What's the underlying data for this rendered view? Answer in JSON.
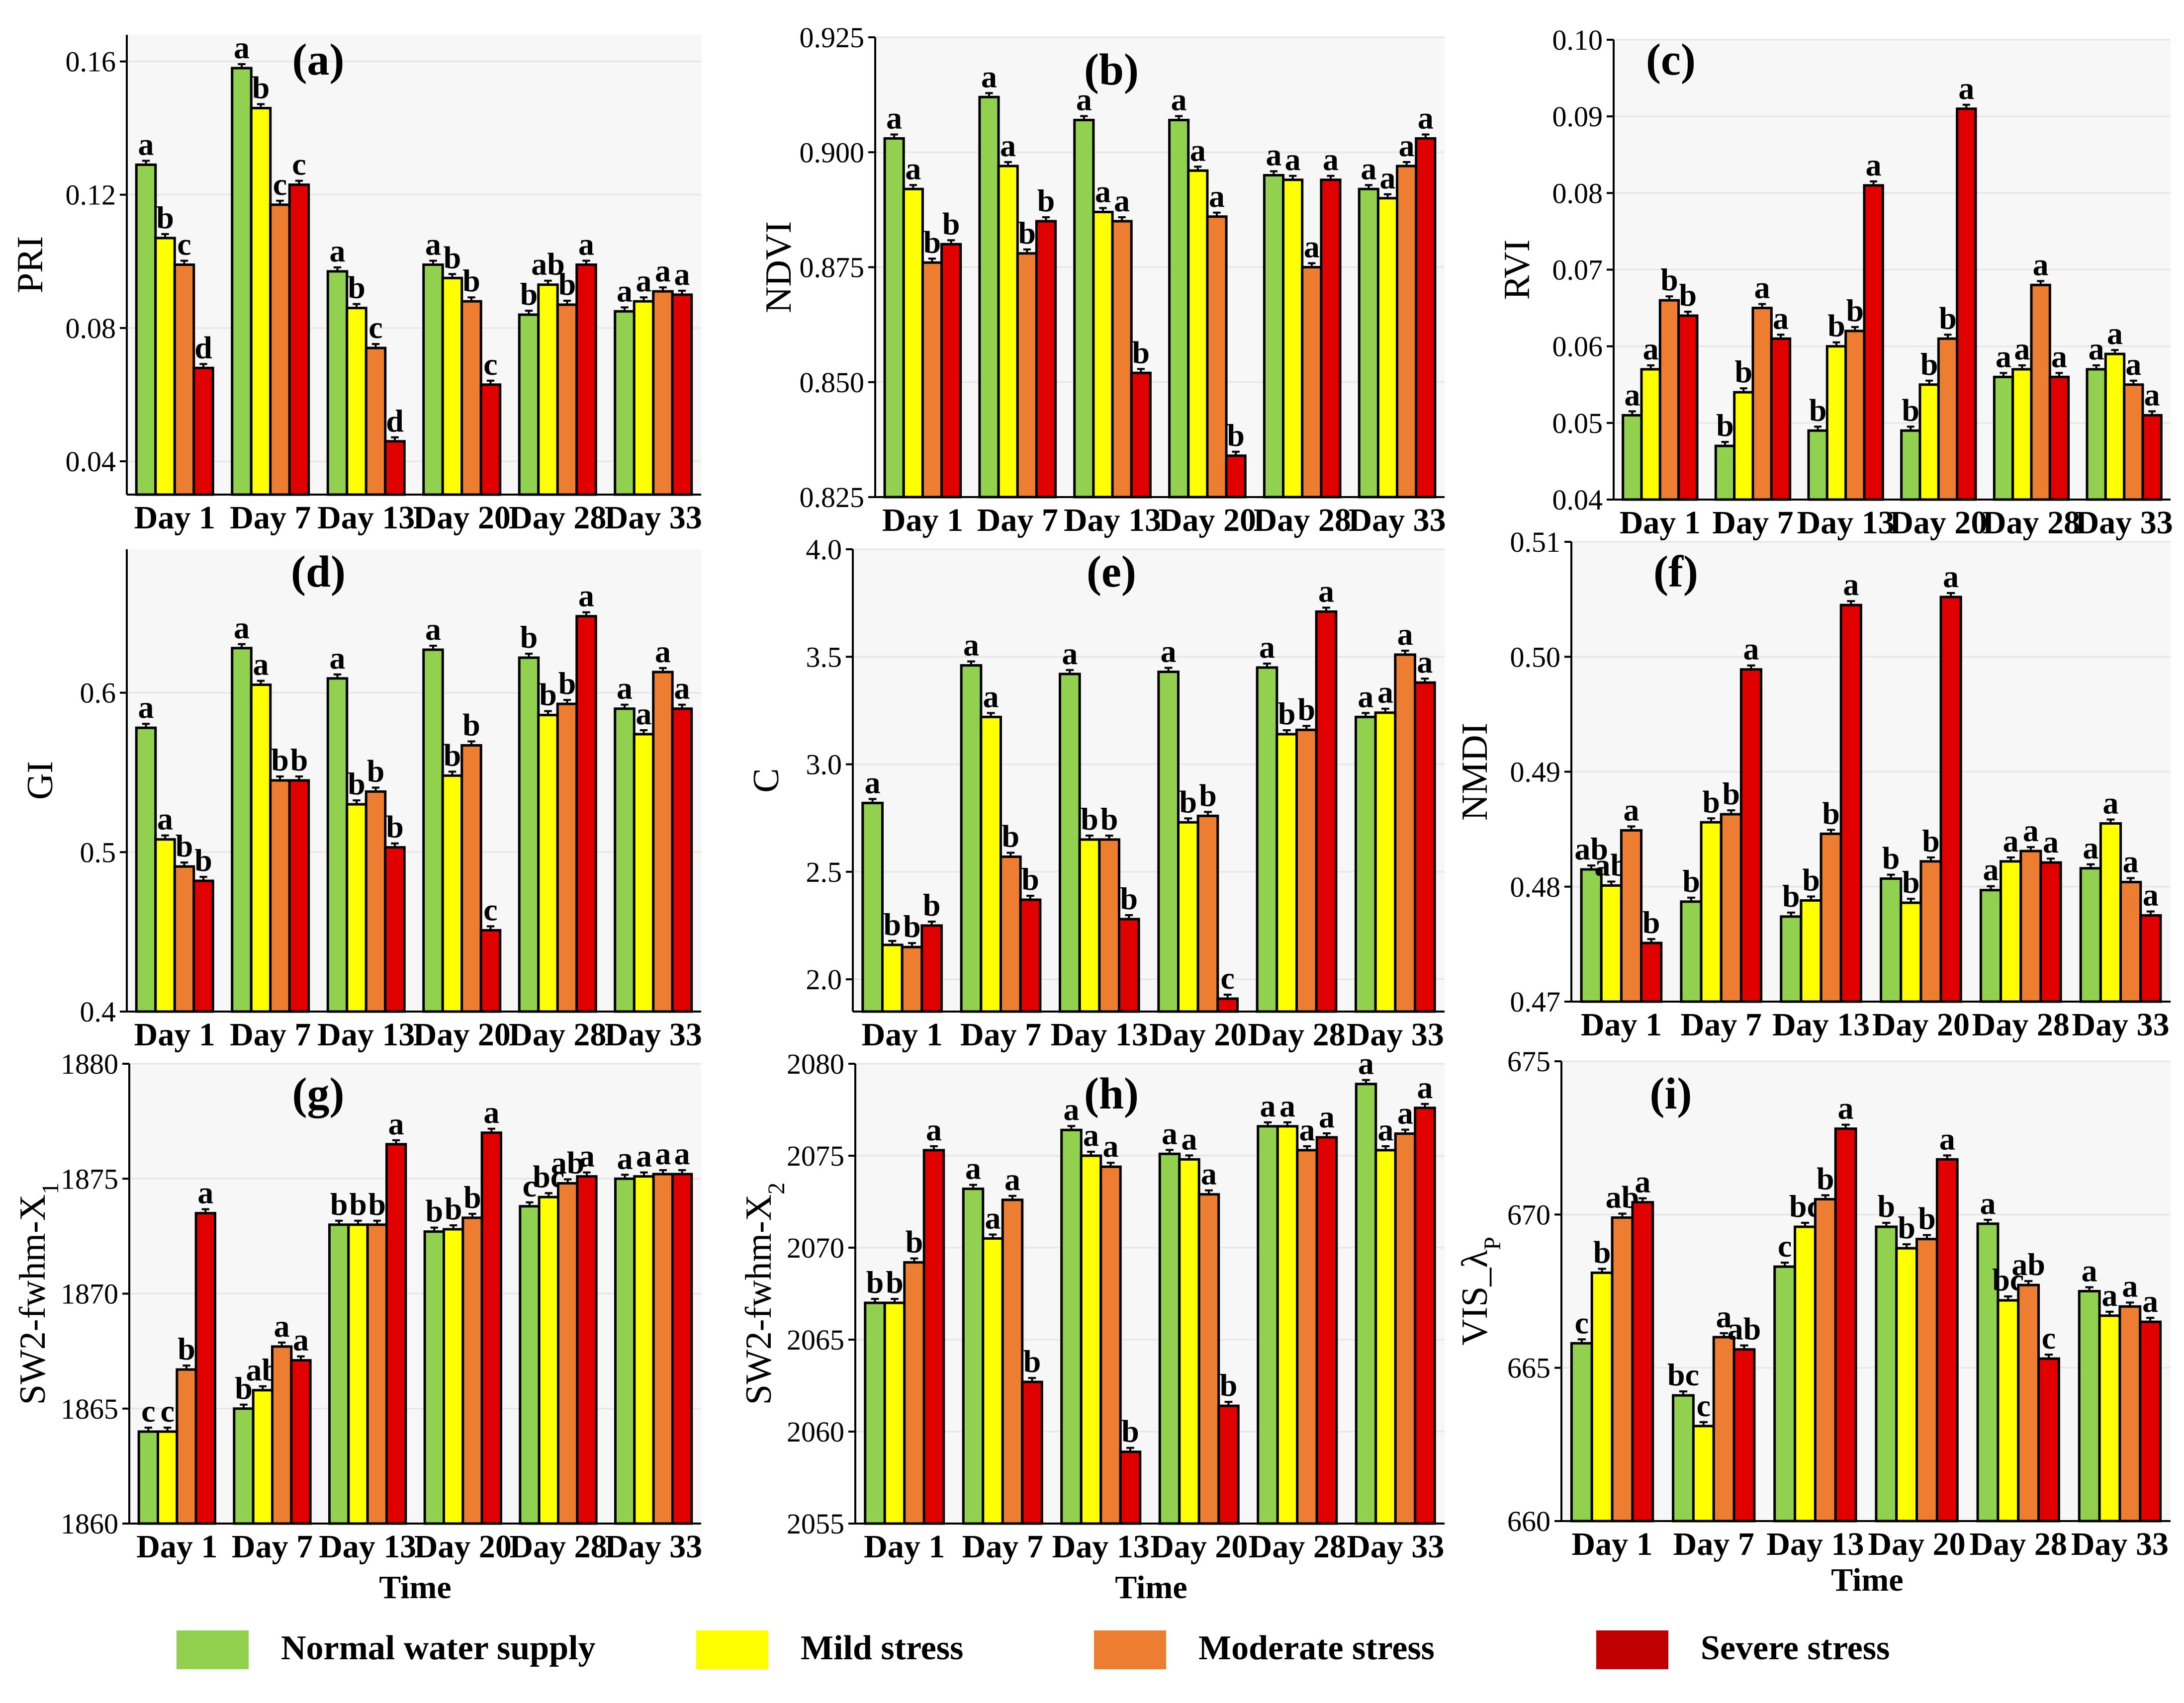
{
  "colors": {
    "normal": "#92d050",
    "mild": "#ffff00",
    "moderate": "#ed7d31",
    "severe": "#e00000",
    "severe_legend": "#c00000",
    "grid": "#e6e6e6",
    "panel_bg": "#f7f7f7"
  },
  "time_label": "Time",
  "legend": [
    {
      "key": "normal",
      "label": "Normal water supply"
    },
    {
      "key": "mild",
      "label": "Mild stress"
    },
    {
      "key": "moderate",
      "label": "Moderate stress"
    },
    {
      "key": "severe",
      "label": "Severe stress"
    }
  ],
  "chart_data": [
    {
      "type": "bar",
      "panel": "(a)",
      "ylabel": "PRI",
      "categories": [
        "Day 1",
        "Day 7",
        "Day 13",
        "Day 20",
        "Day 28",
        "Day 33"
      ],
      "ylim": [
        0.03,
        0.168
      ],
      "yticks": [
        0.04,
        0.08,
        0.12,
        0.16
      ],
      "ytick_labels": [
        "0.04",
        "0.08",
        "0.12",
        "0.16"
      ],
      "series": [
        {
          "name": "Normal water supply",
          "values": [
            0.129,
            0.158,
            0.097,
            0.099,
            0.084,
            0.085
          ],
          "letters": [
            "a",
            "a",
            "a",
            "a",
            "b",
            "a"
          ]
        },
        {
          "name": "Mild stress",
          "values": [
            0.107,
            0.146,
            0.086,
            0.095,
            0.093,
            0.088
          ],
          "letters": [
            "b",
            "b",
            "b",
            "b",
            "ab",
            "a"
          ]
        },
        {
          "name": "Moderate stress",
          "values": [
            0.099,
            0.117,
            0.074,
            0.088,
            0.087,
            0.091
          ],
          "letters": [
            "c",
            "c",
            "c",
            "b",
            "b",
            "a"
          ]
        },
        {
          "name": "Severe stress",
          "values": [
            0.068,
            0.123,
            0.046,
            0.063,
            0.099,
            0.09
          ],
          "letters": [
            "d",
            "c",
            "d",
            "c",
            "a",
            "a"
          ]
        }
      ]
    },
    {
      "type": "bar",
      "panel": "(b)",
      "ylabel": "NDVI",
      "categories": [
        "Day 1",
        "Day 7",
        "Day 13",
        "Day 20",
        "Day 28",
        "Day 33"
      ],
      "ylim": [
        0.825,
        0.925
      ],
      "yticks": [
        0.825,
        0.85,
        0.875,
        0.9,
        0.925
      ],
      "ytick_labels": [
        "0.825",
        "0.850",
        "0.875",
        "0.900",
        "0.925"
      ],
      "series": [
        {
          "name": "Normal water supply",
          "values": [
            0.903,
            0.912,
            0.907,
            0.907,
            0.895,
            0.892
          ],
          "letters": [
            "a",
            "a",
            "a",
            "a",
            "a",
            "a"
          ]
        },
        {
          "name": "Mild stress",
          "values": [
            0.892,
            0.897,
            0.887,
            0.896,
            0.894,
            0.89
          ],
          "letters": [
            "a",
            "a",
            "a",
            "a",
            "a",
            "a"
          ]
        },
        {
          "name": "Moderate stress",
          "values": [
            0.876,
            0.878,
            0.885,
            0.886,
            0.875,
            0.897
          ],
          "letters": [
            "b",
            "b",
            "a",
            "a",
            "a",
            "a"
          ]
        },
        {
          "name": "Severe stress",
          "values": [
            0.88,
            0.885,
            0.852,
            0.834,
            0.894,
            0.903
          ],
          "letters": [
            "b",
            "b",
            "b",
            "b",
            "a",
            "a"
          ]
        }
      ]
    },
    {
      "type": "bar",
      "panel": "(c)",
      "ylabel": "RVI",
      "categories": [
        "Day 1",
        "Day 7",
        "Day 13",
        "Day 20",
        "Day 28",
        "Day 33"
      ],
      "ylim": [
        0.04,
        0.1
      ],
      "yticks": [
        0.04,
        0.05,
        0.06,
        0.07,
        0.08,
        0.09,
        0.1
      ],
      "ytick_labels": [
        "0.04",
        "0.05",
        "0.06",
        "0.07",
        "0.08",
        "0.09",
        "0.10"
      ],
      "series": [
        {
          "name": "Normal water supply",
          "values": [
            0.051,
            0.047,
            0.049,
            0.049,
            0.056,
            0.057
          ],
          "letters": [
            "a",
            "b",
            "b",
            "b",
            "a",
            "a"
          ]
        },
        {
          "name": "Mild stress",
          "values": [
            0.057,
            0.054,
            0.06,
            0.055,
            0.057,
            0.059
          ],
          "letters": [
            "a",
            "b",
            "b",
            "b",
            "a",
            "a"
          ]
        },
        {
          "name": "Moderate stress",
          "values": [
            0.066,
            0.065,
            0.062,
            0.061,
            0.068,
            0.055
          ],
          "letters": [
            "b",
            "a",
            "b",
            "b",
            "a",
            "a"
          ]
        },
        {
          "name": "Severe stress",
          "values": [
            0.064,
            0.061,
            0.081,
            0.091,
            0.056,
            0.051
          ],
          "letters": [
            "b",
            "a",
            "a",
            "a",
            "a",
            "a"
          ]
        }
      ]
    },
    {
      "type": "bar",
      "panel": "(d)",
      "ylabel": "GI",
      "categories": [
        "Day 1",
        "Day 7",
        "Day 13",
        "Day 20",
        "Day 28",
        "Day 33"
      ],
      "ylim": [
        0.4,
        0.69
      ],
      "yticks": [
        0.4,
        0.5,
        0.6
      ],
      "ytick_labels": [
        "0.4",
        "0.5",
        "0.6"
      ],
      "series": [
        {
          "name": "Normal water supply",
          "values": [
            0.578,
            0.628,
            0.609,
            0.627,
            0.622,
            0.59
          ],
          "letters": [
            "a",
            "a",
            "a",
            "a",
            "b",
            "a"
          ]
        },
        {
          "name": "Mild stress",
          "values": [
            0.508,
            0.605,
            0.53,
            0.548,
            0.586,
            0.574
          ],
          "letters": [
            "a",
            "a",
            "b",
            "b",
            "b",
            "a"
          ]
        },
        {
          "name": "Moderate stress",
          "values": [
            0.491,
            0.545,
            0.538,
            0.567,
            0.593,
            0.613
          ],
          "letters": [
            "b",
            "b",
            "b",
            "b",
            "b",
            "a"
          ]
        },
        {
          "name": "Severe stress",
          "values": [
            0.482,
            0.545,
            0.503,
            0.451,
            0.648,
            0.59
          ],
          "letters": [
            "b",
            "b",
            "b",
            "c",
            "a",
            "a"
          ]
        }
      ]
    },
    {
      "type": "bar",
      "panel": "(e)",
      "ylabel": "C",
      "categories": [
        "Day 1",
        "Day 7",
        "Day 13",
        "Day 20",
        "Day 28",
        "Day 33"
      ],
      "ylim": [
        1.85,
        4.0
      ],
      "yticks": [
        2.0,
        2.5,
        3.0,
        3.5,
        4.0
      ],
      "ytick_labels": [
        "2.0",
        "2.5",
        "3.0",
        "3.5",
        "4.0"
      ],
      "series": [
        {
          "name": "Normal water supply",
          "values": [
            2.82,
            3.46,
            3.42,
            3.43,
            3.45,
            3.22
          ],
          "letters": [
            "a",
            "a",
            "a",
            "a",
            "a",
            "a"
          ]
        },
        {
          "name": "Mild stress",
          "values": [
            2.16,
            3.22,
            2.65,
            2.73,
            3.14,
            3.24
          ],
          "letters": [
            "b",
            "a",
            "b",
            "b",
            "b",
            "a"
          ]
        },
        {
          "name": "Moderate stress",
          "values": [
            2.15,
            2.57,
            2.65,
            2.76,
            3.16,
            3.51
          ],
          "letters": [
            "b",
            "b",
            "b",
            "b",
            "b",
            "a"
          ]
        },
        {
          "name": "Severe stress",
          "values": [
            2.25,
            2.37,
            2.28,
            1.91,
            3.71,
            3.38
          ],
          "letters": [
            "b",
            "b",
            "b",
            "c",
            "a",
            "a"
          ]
        }
      ]
    },
    {
      "type": "bar",
      "panel": "(f)",
      "ylabel": "NMDI",
      "categories": [
        "Day 1",
        "Day 7",
        "Day 13",
        "Day 20",
        "Day 28",
        "Day 33"
      ],
      "ylim": [
        0.47,
        0.51
      ],
      "yticks": [
        0.47,
        0.48,
        0.49,
        0.5,
        0.51
      ],
      "ytick_labels": [
        "0.47",
        "0.48",
        "0.49",
        "0.50",
        "0.51"
      ],
      "series": [
        {
          "name": "Normal water supply",
          "values": [
            0.4815,
            0.4787,
            0.4774,
            0.4807,
            0.4797,
            0.4816
          ],
          "letters": [
            "ab",
            "b",
            "b",
            "b",
            "a",
            "a"
          ]
        },
        {
          "name": "Mild stress",
          "values": [
            0.4801,
            0.4856,
            0.4788,
            0.4786,
            0.4822,
            0.4855
          ],
          "letters": [
            "ab",
            "b",
            "b",
            "b",
            "a",
            "a"
          ]
        },
        {
          "name": "Moderate stress",
          "values": [
            0.4849,
            0.4863,
            0.4846,
            0.4822,
            0.4831,
            0.4804
          ],
          "letters": [
            "a",
            "b",
            "b",
            "b",
            "a",
            "a"
          ]
        },
        {
          "name": "Severe stress",
          "values": [
            0.4751,
            0.4989,
            0.5045,
            0.5052,
            0.4821,
            0.4775
          ],
          "letters": [
            "b",
            "a",
            "a",
            "a",
            "a",
            "a"
          ]
        }
      ]
    },
    {
      "type": "bar",
      "panel": "(g)",
      "ylabel": "SW2-fwhm-X",
      "ylabel_sub": "1",
      "categories": [
        "Day 1",
        "Day 7",
        "Day 13",
        "Day 20",
        "Day 28",
        "Day 33"
      ],
      "ylim": [
        1860,
        1880
      ],
      "yticks": [
        1860,
        1865,
        1870,
        1875,
        1880
      ],
      "ytick_labels": [
        "1860",
        "1865",
        "1870",
        "1875",
        "1880"
      ],
      "series": [
        {
          "name": "Normal water supply",
          "values": [
            1864.0,
            1865.0,
            1873.0,
            1872.7,
            1873.8,
            1875.0
          ],
          "letters": [
            "c",
            "b",
            "b",
            "b",
            "c",
            "a"
          ]
        },
        {
          "name": "Mild stress",
          "values": [
            1864.0,
            1865.8,
            1873.0,
            1872.8,
            1874.2,
            1875.1
          ],
          "letters": [
            "c",
            "ab",
            "b",
            "b",
            "bc",
            "a"
          ]
        },
        {
          "name": "Moderate stress",
          "values": [
            1866.7,
            1867.7,
            1873.0,
            1873.3,
            1874.8,
            1875.2
          ],
          "letters": [
            "b",
            "a",
            "b",
            "b",
            "ab",
            "a"
          ]
        },
        {
          "name": "Severe stress",
          "values": [
            1873.5,
            1867.1,
            1876.5,
            1877.0,
            1875.1,
            1875.2
          ],
          "letters": [
            "a",
            "a",
            "a",
            "a",
            "a",
            "a"
          ]
        }
      ]
    },
    {
      "type": "bar",
      "panel": "(h)",
      "ylabel": "SW2-fwhm-X",
      "ylabel_sub": "2",
      "categories": [
        "Day 1",
        "Day 7",
        "Day 13",
        "Day 20",
        "Day 28",
        "Day 33"
      ],
      "ylim": [
        2055,
        2080
      ],
      "yticks": [
        2055,
        2060,
        2065,
        2070,
        2075,
        2080
      ],
      "ytick_labels": [
        "2055",
        "2060",
        "2065",
        "2070",
        "2075",
        "2080"
      ],
      "series": [
        {
          "name": "Normal water supply",
          "values": [
            2067.0,
            2073.2,
            2076.4,
            2075.1,
            2076.6,
            2078.9
          ],
          "letters": [
            "b",
            "a",
            "a",
            "a",
            "a",
            "a"
          ]
        },
        {
          "name": "Mild stress",
          "values": [
            2067.0,
            2070.5,
            2075.0,
            2074.8,
            2076.6,
            2075.3
          ],
          "letters": [
            "b",
            "a",
            "a",
            "a",
            "a",
            "a"
          ]
        },
        {
          "name": "Moderate stress",
          "values": [
            2069.2,
            2072.6,
            2074.4,
            2072.9,
            2075.3,
            2076.2
          ],
          "letters": [
            "b",
            "a",
            "a",
            "a",
            "a",
            "a"
          ]
        },
        {
          "name": "Severe stress",
          "values": [
            2075.3,
            2062.7,
            2058.9,
            2061.4,
            2076.0,
            2077.6
          ],
          "letters": [
            "a",
            "b",
            "b",
            "b",
            "a",
            "a"
          ]
        }
      ]
    },
    {
      "type": "bar",
      "panel": "(i)",
      "ylabel": "VIS_λ",
      "ylabel_sub": "P",
      "categories": [
        "Day 1",
        "Day 7",
        "Day 13",
        "Day 20",
        "Day 28",
        "Day 33"
      ],
      "ylim": [
        660,
        675
      ],
      "yticks": [
        660,
        665,
        670,
        675
      ],
      "ytick_labels": [
        "660",
        "665",
        "670",
        "675"
      ],
      "series": [
        {
          "name": "Normal water supply",
          "values": [
            665.8,
            664.1,
            668.3,
            669.6,
            669.7,
            667.5
          ],
          "letters": [
            "c",
            "bc",
            "c",
            "b",
            "a",
            "a"
          ]
        },
        {
          "name": "Mild stress",
          "values": [
            668.1,
            663.1,
            669.6,
            668.9,
            667.2,
            666.7
          ],
          "letters": [
            "b",
            "c",
            "bc",
            "b",
            "bc",
            "a"
          ]
        },
        {
          "name": "Moderate stress",
          "values": [
            669.9,
            666.0,
            670.5,
            669.2,
            667.7,
            667.0
          ],
          "letters": [
            "ab",
            "a",
            "b",
            "b",
            "ab",
            "a"
          ]
        },
        {
          "name": "Severe stress",
          "values": [
            670.4,
            665.6,
            672.8,
            671.8,
            665.3,
            666.5
          ],
          "letters": [
            "a",
            "ab",
            "a",
            "a",
            "c",
            "a"
          ]
        }
      ]
    }
  ]
}
